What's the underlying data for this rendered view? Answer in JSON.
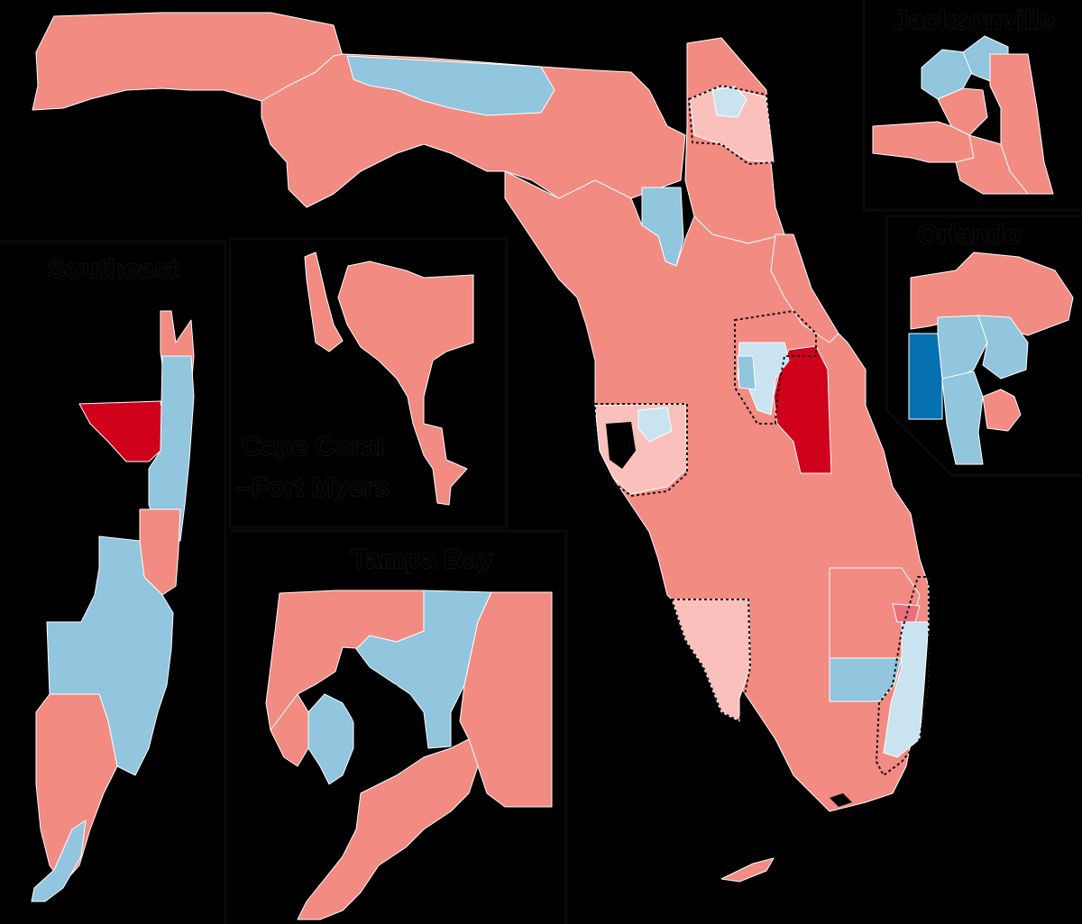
{
  "colors": {
    "background": "#000000",
    "republican": "#f28b82",
    "republican_light": "#f9c0bc",
    "republican_strong": "#d0021b",
    "democrat": "#92c5de",
    "democrat_light": "#c9e3f0",
    "democrat_strong": "#0571b0",
    "tossup_pink": "#e8707a",
    "border": "#ffffff"
  },
  "insets": {
    "jacksonville": {
      "label": "Jacksonville"
    },
    "orlando": {
      "label": "Orlando"
    },
    "southeast": {
      "label": "Southeast"
    },
    "cape_coral": {
      "label": "Cape Coral\n–Fort Myers",
      "line1": "Cape Coral",
      "line2": "–Fort Myers"
    },
    "tampa_bay": {
      "label": "Tampa Bay"
    }
  }
}
